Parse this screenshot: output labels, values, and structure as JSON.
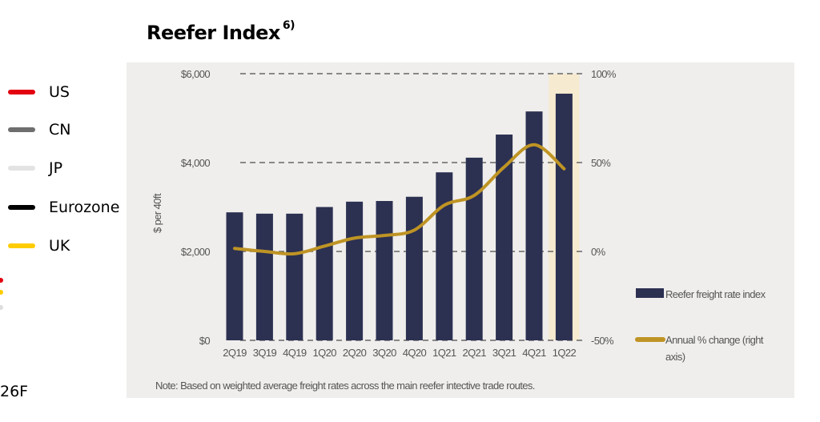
{
  "left_legend": {
    "items": [
      {
        "label": "US",
        "color": "#e3000f"
      },
      {
        "label": "CN",
        "color": "#6e6e6e"
      },
      {
        "label": "JP",
        "color": "#e3e3e3"
      },
      {
        "label": "Eurozone",
        "color": "#000000"
      },
      {
        "label": "UK",
        "color": "#ffcc00"
      }
    ],
    "cut_text": "26F"
  },
  "chart_data": {
    "type": "bar",
    "title": "Reefer Index",
    "title_superscript": "6)",
    "categories": [
      "2Q19",
      "3Q19",
      "4Q19",
      "1Q20",
      "2Q20",
      "3Q20",
      "4Q20",
      "1Q21",
      "2Q21",
      "3Q21",
      "4Q21",
      "1Q22"
    ],
    "series": [
      {
        "name": "Reefer freight rate index",
        "type": "bar",
        "axis": "left",
        "color": "#2c3152",
        "values": [
          2880,
          2850,
          2850,
          3000,
          3120,
          3135,
          3230,
          3780,
          4110,
          4630,
          5150,
          5550
        ]
      },
      {
        "name": "Annual % change (right axis)",
        "type": "line",
        "axis": "right",
        "color": "#bf9424",
        "values": [
          1.7,
          0,
          -1.3,
          3,
          7.5,
          9,
          12,
          26,
          31.5,
          47.5,
          60,
          46.5
        ]
      }
    ],
    "highlight_category": "1Q22",
    "highlight_color": "#f6ead0",
    "ylabel": "$ per 40ft",
    "ylim": [
      0,
      6000
    ],
    "yticks": [
      "$0",
      "$2,000",
      "$4,000",
      "$6,000"
    ],
    "yticks_values": [
      0,
      2000,
      4000,
      6000
    ],
    "y2lim": [
      -50,
      100
    ],
    "y2ticks": [
      "-50%",
      "0%",
      "50%",
      "100%"
    ],
    "y2ticks_values": [
      -50,
      0,
      50,
      100
    ],
    "grid": "dashed horizontal",
    "legend_position": "right",
    "note": "Note: Based on weighted average freight rates across the main reefer intective trade routes."
  }
}
